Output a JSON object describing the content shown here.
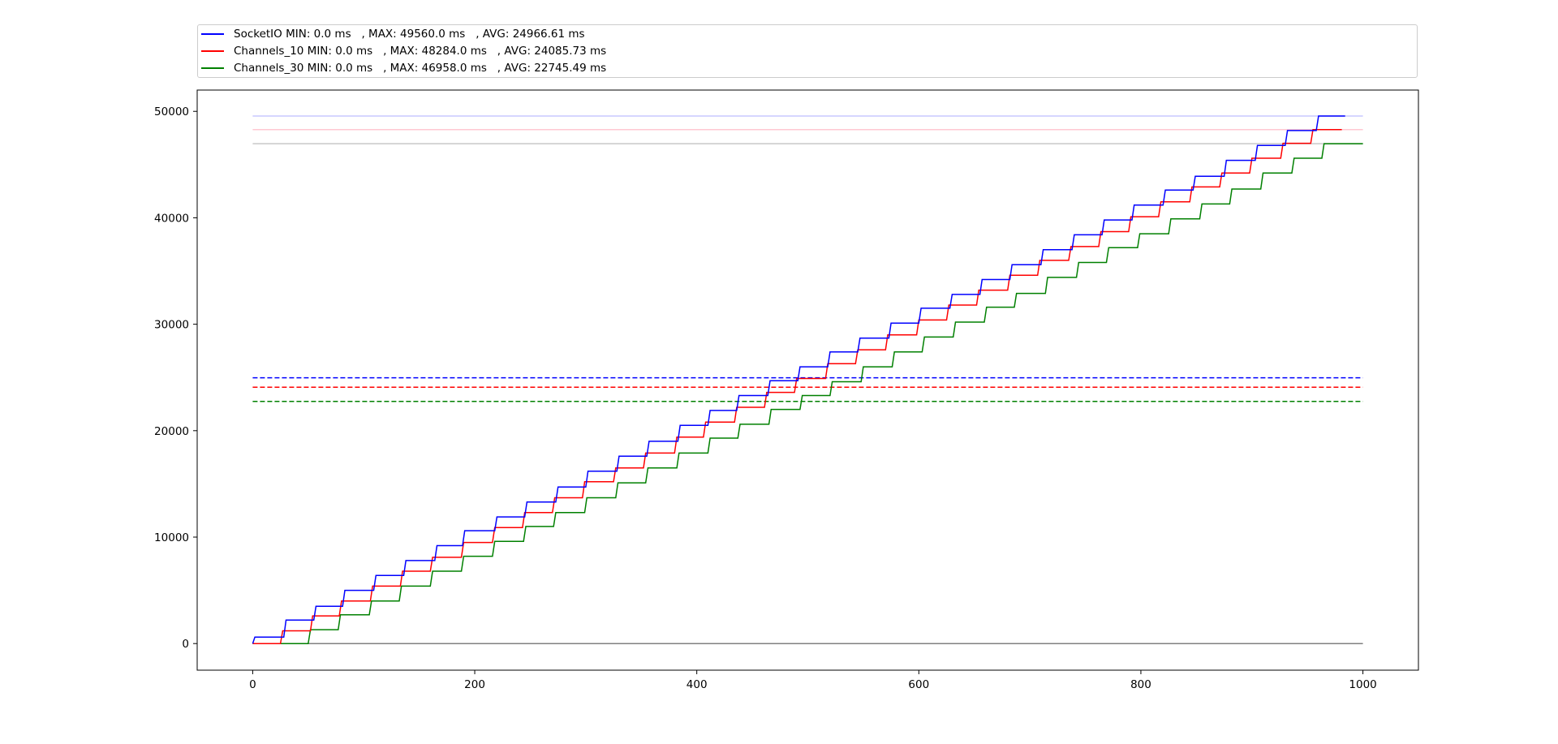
{
  "chart_data": {
    "type": "line",
    "title": "",
    "xlabel": "",
    "ylabel": "",
    "xlim": [
      -50,
      1050
    ],
    "ylim": [
      -2500,
      52000
    ],
    "x_ticks": [
      0,
      200,
      400,
      600,
      800,
      1000
    ],
    "y_ticks": [
      0,
      10000,
      20000,
      30000,
      40000,
      50000
    ],
    "grid": false,
    "legend_position": "top",
    "zero_line": {
      "y": 0,
      "x_range": [
        0,
        1000
      ],
      "color": "#808080"
    },
    "series": [
      {
        "name": "SocketIO",
        "legend_label": "SocketIO MIN: 0.0 ms   , MAX: 49560.0 ms   , AVG: 24966.61 ms",
        "color": "#0000ff",
        "min": 0.0,
        "max": 49560.0,
        "avg": 24966.61,
        "max_line_color": "#c8c8ff",
        "step_x": [
          0,
          2,
          30,
          57,
          83,
          111,
          138,
          166,
          191,
          220,
          247,
          275,
          302,
          330,
          357,
          385,
          412,
          438,
          466,
          493,
          520,
          547,
          575,
          602,
          630,
          657,
          684,
          712,
          740,
          767,
          794,
          822,
          849,
          877,
          905,
          932,
          960,
          986
        ],
        "step_y": [
          0,
          600,
          2200,
          3500,
          5000,
          6400,
          7800,
          9200,
          10600,
          11900,
          13300,
          14700,
          16200,
          17600,
          19000,
          20500,
          21900,
          23300,
          24700,
          26000,
          27400,
          28700,
          30100,
          31500,
          32800,
          34200,
          35600,
          37000,
          38400,
          39800,
          41200,
          42600,
          43900,
          45400,
          46800,
          48200,
          49560
        ]
      },
      {
        "name": "Channels_10",
        "legend_label": "Channels_10 MIN: 0.0 ms   , MAX: 48284.0 ms   , AVG: 24085.73 ms",
        "color": "#ff0000",
        "min": 0.0,
        "max": 48284.0,
        "avg": 24085.73,
        "max_line_color": "#ffc8d2",
        "step_x": [
          0,
          27,
          54,
          80,
          108,
          135,
          162,
          190,
          218,
          245,
          272,
          299,
          327,
          354,
          382,
          408,
          436,
          463,
          490,
          518,
          545,
          572,
          600,
          627,
          654,
          682,
          709,
          737,
          764,
          791,
          818,
          846,
          873,
          900,
          928,
          955,
          983
        ],
        "step_y": [
          0,
          1200,
          2600,
          4000,
          5400,
          6800,
          8100,
          9500,
          10900,
          12300,
          13700,
          15200,
          16500,
          17900,
          19400,
          20800,
          22200,
          23600,
          24900,
          26300,
          27600,
          29000,
          30400,
          31800,
          33200,
          34600,
          36000,
          37300,
          38700,
          40100,
          41500,
          42900,
          44200,
          45600,
          47000,
          48284
        ]
      },
      {
        "name": "Channels_30",
        "legend_label": "Channels_30 MIN: 0.0 ms   , MAX: 46958.0 ms   , AVG: 22745.49 ms",
        "color": "#008000",
        "min": 0.0,
        "max": 46958.0,
        "avg": 22745.49,
        "max_line_color": "#c8c8c8",
        "step_x": [
          0,
          52,
          79,
          107,
          134,
          162,
          190,
          218,
          246,
          273,
          301,
          329,
          356,
          384,
          412,
          439,
          467,
          495,
          522,
          550,
          578,
          605,
          633,
          661,
          688,
          716,
          744,
          771,
          799,
          827,
          855,
          882,
          910,
          938,
          965
        ],
        "step_y": [
          0,
          1300,
          2700,
          4000,
          5400,
          6800,
          8200,
          9600,
          11000,
          12300,
          13700,
          15100,
          16500,
          17900,
          19300,
          20600,
          22000,
          23300,
          24600,
          26000,
          27400,
          28800,
          30200,
          31600,
          32900,
          34400,
          35800,
          37200,
          38500,
          39900,
          41300,
          42700,
          44200,
          45600,
          46958
        ]
      }
    ]
  }
}
